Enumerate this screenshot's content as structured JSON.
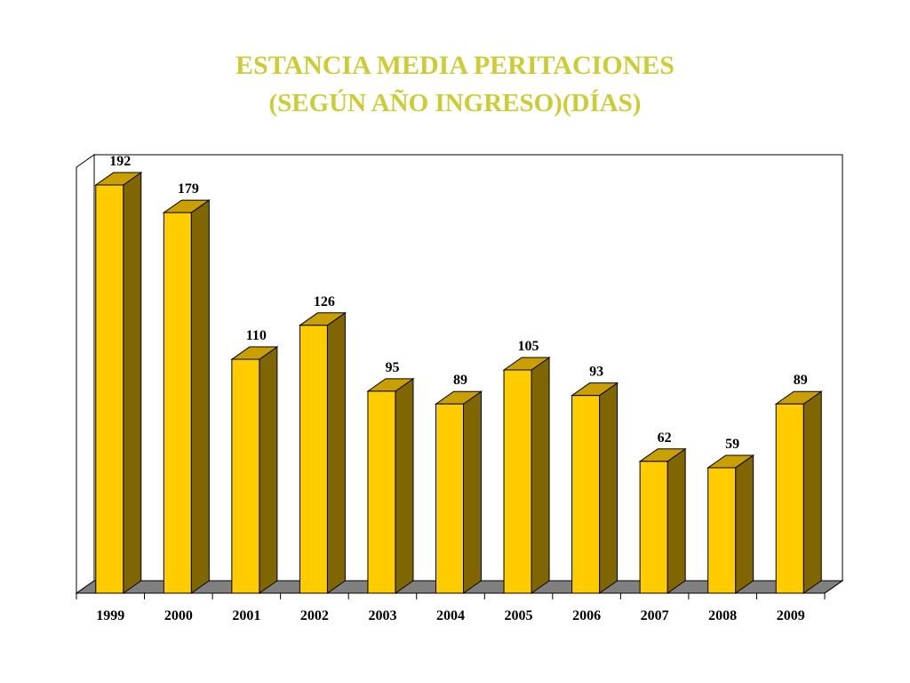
{
  "colors": {
    "title": "#cccc33",
    "bar_front": "#ffcc00",
    "bar_top": "#c9a000",
    "bar_side": "#806600",
    "floor": "#808080",
    "frame": "#000000",
    "text": "#000000"
  },
  "chart_data": {
    "type": "bar",
    "title": "ESTANCIA MEDIA PERITACIONES",
    "subtitle": "(SEGÚN AÑO INGRESO)(DÍAS)",
    "xlabel": "",
    "ylabel": "",
    "categories": [
      "1999",
      "2000",
      "2001",
      "2002",
      "2003",
      "2004",
      "2005",
      "2006",
      "2007",
      "2008",
      "2009"
    ],
    "values": [
      192,
      179,
      110,
      126,
      95,
      89,
      105,
      93,
      62,
      59,
      89
    ],
    "data_labels": [
      "192",
      "179",
      "110",
      "126",
      "95",
      "89",
      "105",
      "93",
      "62",
      "59",
      "89"
    ],
    "ylim": [
      0,
      192
    ],
    "style": "3d",
    "grid": false,
    "legend": "none"
  }
}
